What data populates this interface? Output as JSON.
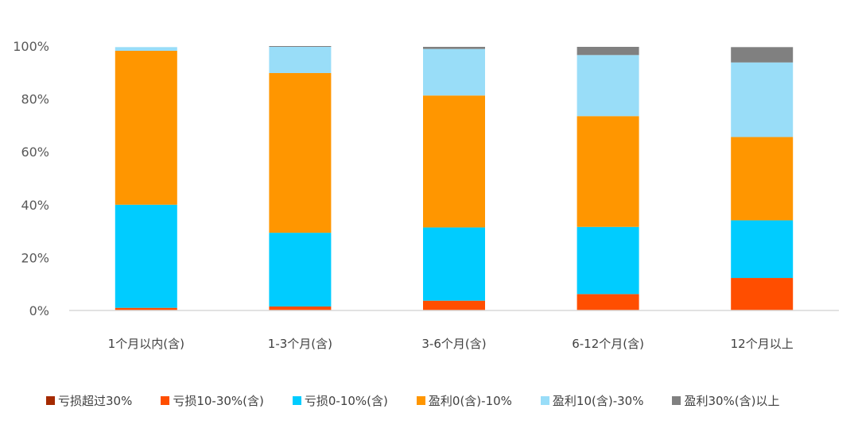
{
  "chart_data": {
    "type": "bar",
    "stacked": true,
    "title": "",
    "xlabel": "",
    "ylabel": "",
    "ylim": [
      0,
      100
    ],
    "yticks": [
      "0%",
      "20%",
      "40%",
      "60%",
      "80%",
      "100%"
    ],
    "grid": false,
    "legend_position": "bottom",
    "categories": [
      "1个月以内(含)",
      "1-3个月(含)",
      "3-6个月(含)",
      "6-12个月(含)",
      "12个月以上"
    ],
    "series": [
      {
        "name": "亏损超过30%",
        "color": "#A52A00",
        "values": [
          0,
          0,
          0,
          0,
          0
        ]
      },
      {
        "name": "亏损10-30%(含)",
        "color": "#FF4E00",
        "values": [
          1.0,
          1.5,
          3.7,
          6.2,
          12.3
        ]
      },
      {
        "name": "亏损0-10%(含)",
        "color": "#00CCFF",
        "values": [
          39.0,
          27.9,
          27.7,
          25.4,
          21.8
        ]
      },
      {
        "name": "盈利0(含)-10%",
        "color": "#FF9600",
        "values": [
          58.2,
          60.4,
          49.9,
          41.9,
          31.5
        ]
      },
      {
        "name": "盈利10(含)-30%",
        "color": "#99DDF8",
        "values": [
          1.4,
          9.9,
          17.6,
          23.1,
          28.2
        ]
      },
      {
        "name": "盈利30%(含)以上",
        "color": "#808080",
        "values": [
          0,
          0.3,
          0.8,
          3.1,
          5.8
        ]
      }
    ]
  }
}
